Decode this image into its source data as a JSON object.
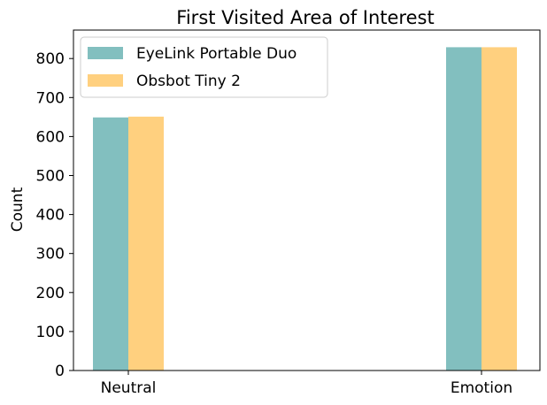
{
  "chart_data": {
    "type": "bar",
    "title": "First Visited Area of Interest",
    "xlabel": "",
    "ylabel": "Count",
    "categories": [
      "Neutral",
      "Emotion"
    ],
    "series": [
      {
        "name": "EyeLink Portable Duo",
        "values": [
          649,
          829
        ],
        "color": "#82bfbf"
      },
      {
        "name": "Obsbot Tiny 2",
        "values": [
          651,
          829
        ],
        "color": "#ffd07f"
      }
    ],
    "ylim": [
      0,
      873
    ],
    "yticks": [
      0,
      100,
      200,
      300,
      400,
      500,
      600,
      700,
      800
    ],
    "grid": false,
    "legend_position": "top-left"
  }
}
